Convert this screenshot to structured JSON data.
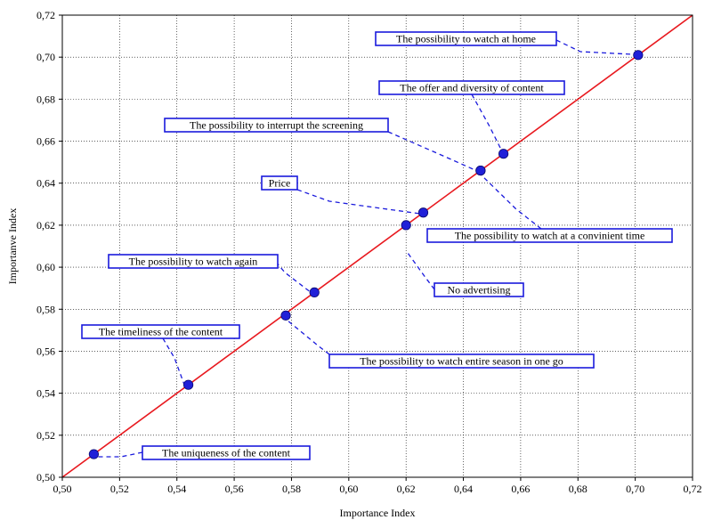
{
  "chart_data": {
    "type": "scatter",
    "title": "",
    "xlabel": "Importance Index",
    "ylabel": "Importanve Index",
    "xlim": [
      0.5,
      0.72
    ],
    "ylim": [
      0.5,
      0.72
    ],
    "x_ticks": [
      "0,50",
      "0,52",
      "0,54",
      "0,56",
      "0,58",
      "0,60",
      "0,62",
      "0,64",
      "0,66",
      "0,68",
      "0,70",
      "0,72"
    ],
    "y_ticks": [
      "0,50",
      "0,52",
      "0,54",
      "0,56",
      "0,58",
      "0,60",
      "0,62",
      "0,64",
      "0,66",
      "0,68",
      "0,70",
      "0,72"
    ],
    "grid": true,
    "reference_line": {
      "type": "y=x",
      "color": "#e8191f"
    },
    "point_color": "#2020d8",
    "label_box_color": "#1a1adc",
    "points": [
      {
        "label": "The uniqueness of the content",
        "x": 0.511,
        "y": 0.511
      },
      {
        "label": "The timeliness of the content",
        "x": 0.544,
        "y": 0.544
      },
      {
        "label": "The possibility to watch entire season in one go",
        "x": 0.578,
        "y": 0.577
      },
      {
        "label": "The possibility to watch again",
        "x": 0.588,
        "y": 0.588
      },
      {
        "label": "No advertising",
        "x": 0.62,
        "y": 0.62
      },
      {
        "label": "Price",
        "x": 0.626,
        "y": 0.626
      },
      {
        "label": "The possibility to interrupt the screening",
        "x": 0.646,
        "y": 0.646
      },
      {
        "label": "The possibility to watch at a convinient time",
        "x": 0.646,
        "y": 0.646
      },
      {
        "label": "The offer and diversity of content",
        "x": 0.654,
        "y": 0.654
      },
      {
        "label": "The possibility to watch at home",
        "x": 0.701,
        "y": 0.701
      }
    ]
  }
}
